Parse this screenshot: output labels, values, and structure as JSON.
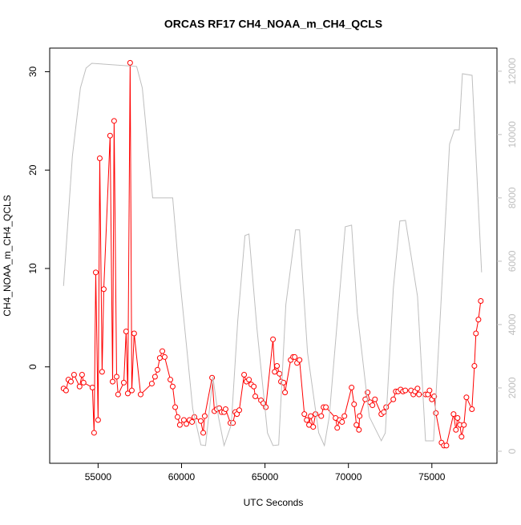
{
  "chart_data": {
    "type": "line",
    "title": "ORCAS RF17 CH4_NOAA_m_CH4_QCLS",
    "x_label": "UTC Seconds",
    "y_label": "CH4_NOAA_m_CH4_QCLS",
    "xlim": [
      52100,
      78900
    ],
    "xticks": [
      55000,
      60000,
      65000,
      70000,
      75000
    ],
    "ylim": [
      -9.8,
      32.4
    ],
    "yticks": [
      0,
      10,
      20,
      30
    ],
    "y2lim": [
      -380,
      12730
    ],
    "y2ticks": [
      0,
      2000,
      4000,
      6000,
      8000,
      10000,
      12000
    ],
    "series": [
      {
        "color": "#ff0000",
        "markers": true,
        "x": [
          52930,
          53080,
          53220,
          53370,
          53560,
          53890,
          54040,
          54130,
          54660,
          54760,
          54860,
          55000,
          55100,
          55240,
          55340,
          55720,
          55870,
          55960,
          56110,
          56200,
          56540,
          56680,
          56780,
          56920,
          57020,
          57160,
          57550,
          58220,
          58410,
          58560,
          58700,
          58850,
          58990,
          59330,
          59470,
          59620,
          59760,
          59900,
          60140,
          60290,
          60480,
          60630,
          60770,
          61150,
          61300,
          61390,
          61830,
          61970,
          62120,
          62260,
          62400,
          62550,
          62640,
          62930,
          63080,
          63220,
          63320,
          63460,
          63750,
          63890,
          64040,
          64180,
          64330,
          64420,
          64760,
          64900,
          65050,
          65480,
          65580,
          65720,
          65870,
          65960,
          66110,
          66200,
          66540,
          66680,
          66780,
          66920,
          67070,
          67360,
          67500,
          67640,
          67740,
          67890,
          68030,
          68370,
          68510,
          68650,
          69230,
          69330,
          69470,
          69620,
          69760,
          70190,
          70340,
          70480,
          70630,
          70670,
          71010,
          71150,
          71300,
          71440,
          71590,
          71970,
          72120,
          72260,
          72690,
          72840,
          72980,
          73130,
          73270,
          73410,
          73750,
          73890,
          73990,
          74140,
          74230,
          74620,
          74760,
          74860,
          75000,
          75140,
          75240,
          75580,
          75720,
          75870,
          76300,
          76440,
          76540,
          76680,
          76780,
          76920,
          77070,
          77400,
          77550,
          77640,
          77790,
          77930
        ],
        "values": [
          -2.2,
          -2.4,
          -1.3,
          -1.5,
          -0.8,
          -2.0,
          -0.8,
          -1.6,
          -2.1,
          -6.7,
          9.6,
          -5.4,
          21.2,
          -0.5,
          7.9,
          23.5,
          -1.5,
          25.0,
          -1.0,
          -2.8,
          -1.6,
          3.6,
          -2.7,
          30.9,
          -2.4,
          3.4,
          -2.8,
          -1.7,
          -1.0,
          -0.3,
          0.9,
          1.6,
          1.0,
          -1.3,
          -2.0,
          -4.1,
          -5.1,
          -5.9,
          -5.4,
          -5.8,
          -5.4,
          -5.6,
          -5.1,
          -5.5,
          -6.7,
          -5.0,
          -1.1,
          -4.5,
          -4.3,
          -4.2,
          -4.6,
          -4.6,
          -4.3,
          -5.7,
          -5.7,
          -4.6,
          -4.8,
          -4.4,
          -0.8,
          -1.5,
          -1.3,
          -1.8,
          -2.0,
          -3.0,
          -3.4,
          -3.7,
          -4.1,
          2.8,
          -0.5,
          0.1,
          -0.7,
          -1.5,
          -1.6,
          -2.6,
          0.7,
          1.0,
          1.0,
          0.4,
          0.7,
          -4.8,
          -5.4,
          -5.9,
          -5.0,
          -6.1,
          -4.8,
          -5.0,
          -4.1,
          -4.1,
          -5.2,
          -6.2,
          -5.4,
          -5.6,
          -5.0,
          -2.1,
          -3.8,
          -5.9,
          -6.4,
          -5.0,
          -3.3,
          -2.6,
          -3.6,
          -3.9,
          -3.3,
          -4.8,
          -4.6,
          -4.1,
          -3.3,
          -2.5,
          -2.5,
          -2.3,
          -2.5,
          -2.4,
          -2.4,
          -2.8,
          -2.5,
          -2.2,
          -2.8,
          -2.8,
          -2.8,
          -2.4,
          -3.3,
          -3.0,
          -4.7,
          -7.7,
          -8.0,
          -8.0,
          -4.8,
          -6.4,
          -5.2,
          -5.9,
          -7.1,
          -5.9,
          -3.1,
          -4.3,
          0.1,
          3.4,
          4.8,
          6.7
        ]
      },
      {
        "color": "#bebebe",
        "axis": "y2",
        "markers": false,
        "x": [
          52930,
          53460,
          53940,
          54280,
          54620,
          57310,
          57650,
          58270,
          59470,
          59810,
          60290,
          60670,
          61160,
          61440,
          61880,
          62210,
          62550,
          62980,
          63370,
          63800,
          64040,
          64520,
          65150,
          65480,
          65820,
          66250,
          66830,
          67070,
          67550,
          68220,
          68560,
          68850,
          69810,
          70190,
          70530,
          71250,
          71970,
          72210,
          72690,
          73080,
          73420,
          74140,
          74620,
          75100,
          76060,
          76350,
          76640,
          76830,
          77410,
          77980
        ],
        "values": [
          5220,
          9320,
          11470,
          12100,
          12250,
          12150,
          11470,
          8000,
          8000,
          5900,
          3370,
          1340,
          200,
          180,
          2350,
          1090,
          180,
          840,
          4130,
          6810,
          6860,
          3870,
          580,
          180,
          200,
          4630,
          6990,
          6990,
          3110,
          580,
          180,
          1090,
          7090,
          7140,
          4380,
          1090,
          330,
          580,
          5140,
          7270,
          7290,
          4890,
          330,
          330,
          9700,
          10150,
          10150,
          11920,
          11870,
          5650
        ]
      }
    ]
  }
}
